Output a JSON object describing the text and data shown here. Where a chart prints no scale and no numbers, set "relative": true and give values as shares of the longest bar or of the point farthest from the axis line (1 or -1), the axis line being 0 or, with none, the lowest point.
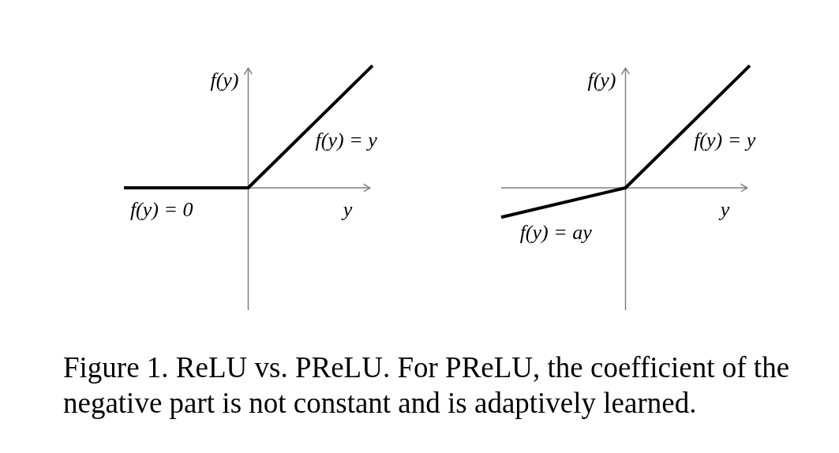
{
  "chart_data": [
    {
      "type": "line",
      "relative": true,
      "xlabel": "y",
      "ylabel": "f(y)",
      "categories": [
        null,
        null,
        null
      ],
      "series": [
        {
          "color": "#000000",
          "values": [
            0,
            0,
            1
          ]
        }
      ],
      "annotations": [
        "f(y) = y",
        "f(y) = 0",
        "Figure 1. ReLU vs.  PReLU. For PReLU, the coefficient of the\nnegative part is not constant and is adaptively learned."
      ]
    },
    {
      "type": "line",
      "relative": true,
      "xlabel": "y",
      "ylabel": "f(y)",
      "categories": [
        null,
        null,
        null
      ],
      "series": [
        {
          "color": "#000000",
          "values": [
            -0.24,
            0,
            1
          ]
        }
      ],
      "annotations": [
        "f(y) = y",
        "f(y) = ay"
      ]
    }
  ]
}
